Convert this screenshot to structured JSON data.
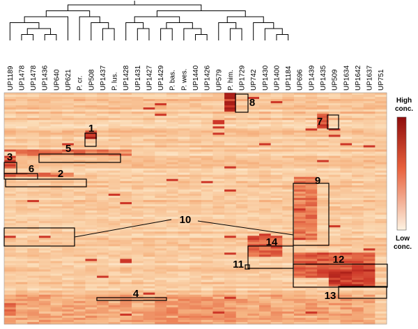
{
  "chart_data": {
    "type": "heatmap",
    "title": "",
    "xlabel": "",
    "ylabel": "",
    "columns": [
      "UP1189",
      "UP1478",
      "UP1478",
      "UP1436",
      "UP640",
      "UP621",
      "P. cr.",
      "UP508",
      "UP1437",
      "P. lus.",
      "UP1428",
      "UP1431",
      "UP1427",
      "UP1429",
      "P. bas.",
      "P. wes.",
      "UP1440",
      "UP1426",
      "UP579",
      "P. him.",
      "UP1729",
      "UP742",
      "UP1430",
      "UP1400",
      "UP1184",
      "UP696",
      "UP1439",
      "UP1435",
      "UP509",
      "UP1634",
      "UP1642",
      "UP1637",
      "UP751"
    ],
    "legend": {
      "high": "High",
      "high2": "conc.",
      "low": "Low",
      "low2": "conc."
    },
    "clusters": [
      {
        "label": "1"
      },
      {
        "label": "2"
      },
      {
        "label": "3"
      },
      {
        "label": "4"
      },
      {
        "label": "5"
      },
      {
        "label": "6"
      },
      {
        "label": "7"
      },
      {
        "label": "8"
      },
      {
        "label": "9"
      },
      {
        "label": "10"
      },
      {
        "label": "11"
      },
      {
        "label": "12"
      },
      {
        "label": "13"
      },
      {
        "label": "14"
      }
    ],
    "dendrogram": "hierarchical clustering tree over columns",
    "colors": {
      "low": "#fdf0dc",
      "high": "#8e0c0c",
      "mid": "#e8603c"
    }
  }
}
